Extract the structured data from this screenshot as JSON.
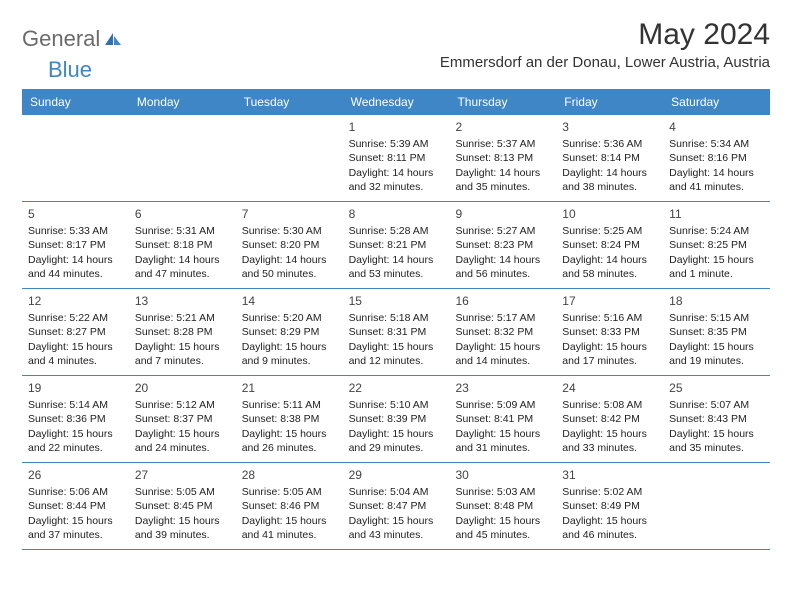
{
  "brand": {
    "part1": "General",
    "part2": "Blue"
  },
  "title": "May 2024",
  "location": "Emmersdorf an der Donau, Lower Austria, Austria",
  "colors": {
    "header_bg": "#3e86c6",
    "header_fg": "#ffffff",
    "rule": "#3e86c6",
    "text": "#222222",
    "brand_blue": "#3e86c6"
  },
  "daynames": [
    "Sunday",
    "Monday",
    "Tuesday",
    "Wednesday",
    "Thursday",
    "Friday",
    "Saturday"
  ],
  "weeks": [
    [
      null,
      null,
      null,
      {
        "n": "1",
        "rise": "5:39 AM",
        "set": "8:11 PM",
        "dl": "14 hours and 32 minutes."
      },
      {
        "n": "2",
        "rise": "5:37 AM",
        "set": "8:13 PM",
        "dl": "14 hours and 35 minutes."
      },
      {
        "n": "3",
        "rise": "5:36 AM",
        "set": "8:14 PM",
        "dl": "14 hours and 38 minutes."
      },
      {
        "n": "4",
        "rise": "5:34 AM",
        "set": "8:16 PM",
        "dl": "14 hours and 41 minutes."
      }
    ],
    [
      {
        "n": "5",
        "rise": "5:33 AM",
        "set": "8:17 PM",
        "dl": "14 hours and 44 minutes."
      },
      {
        "n": "6",
        "rise": "5:31 AM",
        "set": "8:18 PM",
        "dl": "14 hours and 47 minutes."
      },
      {
        "n": "7",
        "rise": "5:30 AM",
        "set": "8:20 PM",
        "dl": "14 hours and 50 minutes."
      },
      {
        "n": "8",
        "rise": "5:28 AM",
        "set": "8:21 PM",
        "dl": "14 hours and 53 minutes."
      },
      {
        "n": "9",
        "rise": "5:27 AM",
        "set": "8:23 PM",
        "dl": "14 hours and 56 minutes."
      },
      {
        "n": "10",
        "rise": "5:25 AM",
        "set": "8:24 PM",
        "dl": "14 hours and 58 minutes."
      },
      {
        "n": "11",
        "rise": "5:24 AM",
        "set": "8:25 PM",
        "dl": "15 hours and 1 minute."
      }
    ],
    [
      {
        "n": "12",
        "rise": "5:22 AM",
        "set": "8:27 PM",
        "dl": "15 hours and 4 minutes."
      },
      {
        "n": "13",
        "rise": "5:21 AM",
        "set": "8:28 PM",
        "dl": "15 hours and 7 minutes."
      },
      {
        "n": "14",
        "rise": "5:20 AM",
        "set": "8:29 PM",
        "dl": "15 hours and 9 minutes."
      },
      {
        "n": "15",
        "rise": "5:18 AM",
        "set": "8:31 PM",
        "dl": "15 hours and 12 minutes."
      },
      {
        "n": "16",
        "rise": "5:17 AM",
        "set": "8:32 PM",
        "dl": "15 hours and 14 minutes."
      },
      {
        "n": "17",
        "rise": "5:16 AM",
        "set": "8:33 PM",
        "dl": "15 hours and 17 minutes."
      },
      {
        "n": "18",
        "rise": "5:15 AM",
        "set": "8:35 PM",
        "dl": "15 hours and 19 minutes."
      }
    ],
    [
      {
        "n": "19",
        "rise": "5:14 AM",
        "set": "8:36 PM",
        "dl": "15 hours and 22 minutes."
      },
      {
        "n": "20",
        "rise": "5:12 AM",
        "set": "8:37 PM",
        "dl": "15 hours and 24 minutes."
      },
      {
        "n": "21",
        "rise": "5:11 AM",
        "set": "8:38 PM",
        "dl": "15 hours and 26 minutes."
      },
      {
        "n": "22",
        "rise": "5:10 AM",
        "set": "8:39 PM",
        "dl": "15 hours and 29 minutes."
      },
      {
        "n": "23",
        "rise": "5:09 AM",
        "set": "8:41 PM",
        "dl": "15 hours and 31 minutes."
      },
      {
        "n": "24",
        "rise": "5:08 AM",
        "set": "8:42 PM",
        "dl": "15 hours and 33 minutes."
      },
      {
        "n": "25",
        "rise": "5:07 AM",
        "set": "8:43 PM",
        "dl": "15 hours and 35 minutes."
      }
    ],
    [
      {
        "n": "26",
        "rise": "5:06 AM",
        "set": "8:44 PM",
        "dl": "15 hours and 37 minutes."
      },
      {
        "n": "27",
        "rise": "5:05 AM",
        "set": "8:45 PM",
        "dl": "15 hours and 39 minutes."
      },
      {
        "n": "28",
        "rise": "5:05 AM",
        "set": "8:46 PM",
        "dl": "15 hours and 41 minutes."
      },
      {
        "n": "29",
        "rise": "5:04 AM",
        "set": "8:47 PM",
        "dl": "15 hours and 43 minutes."
      },
      {
        "n": "30",
        "rise": "5:03 AM",
        "set": "8:48 PM",
        "dl": "15 hours and 45 minutes."
      },
      {
        "n": "31",
        "rise": "5:02 AM",
        "set": "8:49 PM",
        "dl": "15 hours and 46 minutes."
      },
      null
    ]
  ],
  "labels": {
    "sunrise": "Sunrise: ",
    "sunset": "Sunset: ",
    "daylight": "Daylight: "
  }
}
